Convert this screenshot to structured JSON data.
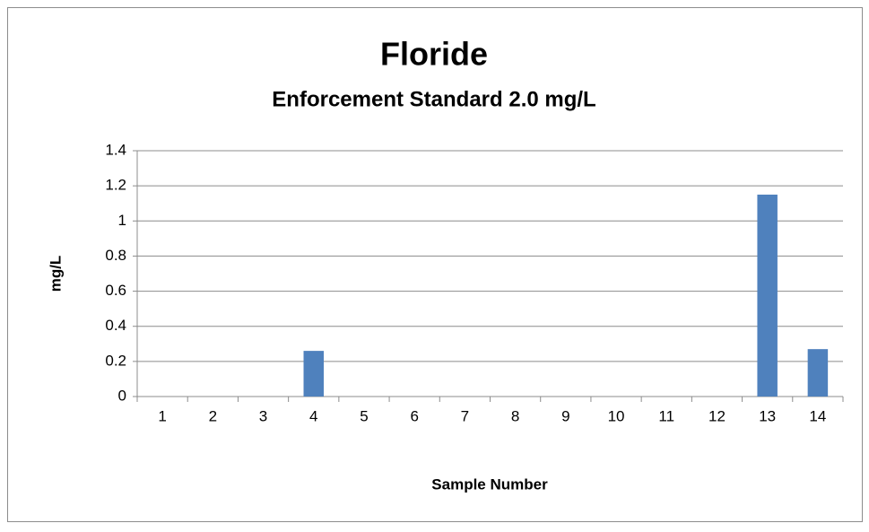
{
  "chart_data": {
    "type": "bar",
    "title": "Floride",
    "subtitle": "Enforcement Standard 2.0 mg/L",
    "x_label": "Sample Number",
    "y_label": "mg/L",
    "categories": [
      "1",
      "2",
      "3",
      "4",
      "5",
      "6",
      "7",
      "8",
      "9",
      "10",
      "11",
      "12",
      "13",
      "14"
    ],
    "values": [
      0,
      0,
      0,
      0.26,
      0,
      0,
      0,
      0,
      0,
      0,
      0,
      0,
      1.15,
      0.27
    ],
    "color": "#4f81bd",
    "ylim": [
      0,
      1.4
    ],
    "yticks": [
      0,
      0.2,
      0.4,
      0.6,
      0.8,
      1,
      1.2,
      1.4
    ],
    "grid": true
  }
}
